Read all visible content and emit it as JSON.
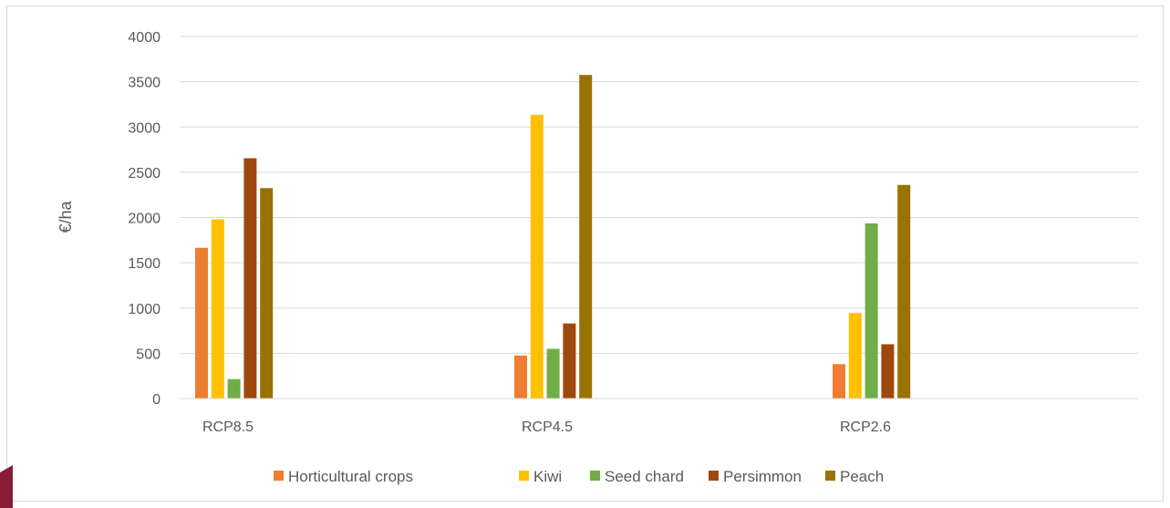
{
  "chart_data": {
    "type": "bar",
    "categories": [
      "RCP8.5",
      "RCP4.5",
      "RCP2.6"
    ],
    "series": [
      {
        "name": "Horticultural crops",
        "color": "#ED7D31",
        "values": [
          1665,
          475,
          380
        ]
      },
      {
        "name": "Kiwi",
        "color": "#FFC000",
        "values": [
          1980,
          3135,
          945
        ]
      },
      {
        "name": "Seed chard",
        "color": "#70AD47",
        "values": [
          215,
          550,
          1935
        ]
      },
      {
        "name": "Persimmon",
        "color": "#9E480E",
        "values": [
          2655,
          830,
          600
        ]
      },
      {
        "name": "Peach",
        "color": "#997300",
        "values": [
          2325,
          3575,
          2360
        ]
      }
    ],
    "ylabel": "€/ha",
    "xlabel": "",
    "ylim": [
      0,
      4000
    ],
    "yticks": [
      0,
      500,
      1000,
      1500,
      2000,
      2500,
      3000,
      3500,
      4000
    ],
    "grid": true,
    "legend_position": "bottom"
  }
}
